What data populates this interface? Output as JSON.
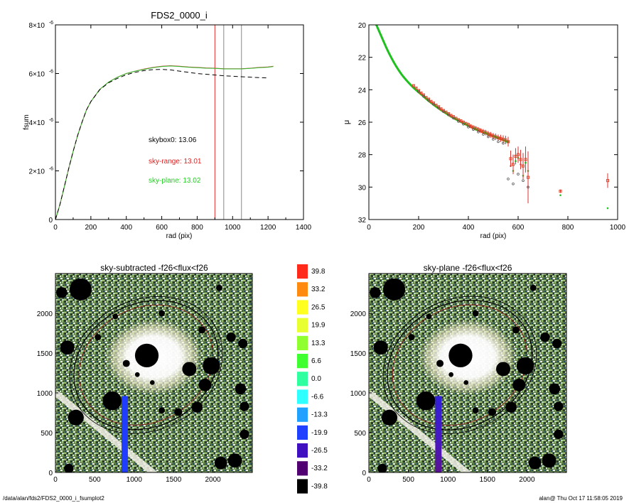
{
  "page": {
    "footer_left": "/data/alan/fds2/FDS2_0000_i_fsumplot2",
    "footer_right": "alan@  Thu Oct 17 11:58:05 2019"
  },
  "chart_data": [
    {
      "type": "line",
      "title": "FDS2_0000_i",
      "xlabel": "rad (pix)",
      "ylabel": "fsum",
      "xlim": [
        0,
        1400
      ],
      "ylim": [
        0,
        8e-06
      ],
      "x_ticks": [
        "0",
        "200",
        "400",
        "600",
        "800",
        "1000",
        "1200",
        "1400"
      ],
      "y_ticks": [
        {
          "value": 0,
          "label": "0",
          "sup": ""
        },
        {
          "value": 2e-06,
          "label": "2×10",
          "sup": "-6"
        },
        {
          "value": 4e-06,
          "label": "4×10",
          "sup": "-6"
        },
        {
          "value": 6e-06,
          "label": "6×10",
          "sup": "-6"
        },
        {
          "value": 8e-06,
          "label": "8×10",
          "sup": "-6"
        }
      ],
      "series": [
        {
          "color": "#d22020",
          "x": [
            0,
            25,
            50,
            75,
            100,
            125,
            150,
            175,
            200,
            250,
            300,
            350,
            400,
            450,
            500,
            550,
            600,
            650,
            700,
            750,
            800,
            850,
            900,
            950,
            1000,
            1050,
            1100,
            1150,
            1200,
            1230
          ],
          "y": [
            0,
            6e-07,
            1.35e-06,
            2.1e-06,
            2.8e-06,
            3.45e-06,
            4e-06,
            4.5e-06,
            4.85e-06,
            5.35e-06,
            5.65e-06,
            5.85e-06,
            6e-06,
            6.1e-06,
            6.18e-06,
            6.25e-06,
            6.3e-06,
            6.32e-06,
            6.3e-06,
            6.27e-06,
            6.25e-06,
            6.23e-06,
            6.22e-06,
            6.2e-06,
            6.2e-06,
            6.2e-06,
            6.22e-06,
            6.25e-06,
            6.27e-06,
            6.3e-06
          ]
        },
        {
          "color": "#30c030",
          "x": [
            0,
            25,
            50,
            75,
            100,
            125,
            150,
            175,
            200,
            250,
            300,
            350,
            400,
            450,
            500,
            550,
            600,
            650,
            700,
            750,
            800,
            850,
            900,
            950,
            1000,
            1050,
            1100,
            1150,
            1200,
            1230
          ],
          "y": [
            0,
            6e-07,
            1.35e-06,
            2.1e-06,
            2.8e-06,
            3.45e-06,
            4e-06,
            4.5e-06,
            4.85e-06,
            5.35e-06,
            5.65e-06,
            5.85e-06,
            6e-06,
            6.1e-06,
            6.17e-06,
            6.24e-06,
            6.29e-06,
            6.31e-06,
            6.29e-06,
            6.26e-06,
            6.24e-06,
            6.22e-06,
            6.21e-06,
            6.19e-06,
            6.19e-06,
            6.19e-06,
            6.21e-06,
            6.24e-06,
            6.26e-06,
            6.29e-06
          ]
        },
        {
          "color": "#000000",
          "dash": "6,4",
          "x": [
            0,
            25,
            50,
            75,
            100,
            125,
            150,
            175,
            200,
            250,
            300,
            350,
            400,
            450,
            500,
            550,
            600,
            650,
            700,
            750,
            800,
            850,
            900,
            950,
            1000,
            1050,
            1100,
            1150,
            1200
          ],
          "y": [
            0,
            6e-07,
            1.35e-06,
            2.1e-06,
            2.8e-06,
            3.45e-06,
            4e-06,
            4.5e-06,
            4.85e-06,
            5.33e-06,
            5.62e-06,
            5.8e-06,
            5.95e-06,
            6.05e-06,
            6.12e-06,
            6.16e-06,
            6.17e-06,
            6.15e-06,
            6.1e-06,
            6.05e-06,
            6e-06,
            5.97e-06,
            5.94e-06,
            5.91e-06,
            5.89e-06,
            5.87e-06,
            5.85e-06,
            5.83e-06,
            5.82e-06
          ]
        }
      ],
      "vlines": [
        {
          "x": 900,
          "color": "#e03030"
        },
        {
          "x": 950,
          "color": "#888888"
        },
        {
          "x": 1050,
          "color": "#888888"
        }
      ],
      "annotations": [
        {
          "text": "skybox0: 13.06",
          "color": "#000000"
        },
        {
          "text": "sky-range: 13.01",
          "color": "#e02020"
        },
        {
          "text": "sky-plane: 13.02",
          "color": "#20d020"
        }
      ]
    },
    {
      "type": "scatter",
      "title": "",
      "xlabel": "rad (pix)",
      "ylabel": "μ",
      "xlim": [
        0,
        1000
      ],
      "ylim": [
        20,
        32
      ],
      "y_inverted": true,
      "x_ticks": [
        "0",
        "200",
        "400",
        "600",
        "800",
        "1000"
      ],
      "y_ticks": [
        "20",
        "22",
        "24",
        "26",
        "28",
        "30",
        "32"
      ],
      "series": [
        {
          "name": "",
          "color": "#20c020",
          "marker": "dot",
          "x": [
            30,
            40,
            50,
            60,
            70,
            80,
            90,
            100,
            110,
            120,
            130,
            140,
            150,
            160,
            170,
            180,
            190,
            200,
            210,
            220,
            230,
            240,
            250,
            260,
            270,
            280,
            290,
            300,
            310,
            320,
            330,
            340,
            350,
            360,
            370,
            380,
            390,
            400,
            410,
            420,
            430,
            440,
            450,
            460,
            470,
            480,
            490,
            500,
            510,
            520,
            530,
            540,
            550,
            560,
            570,
            580,
            590,
            600,
            610,
            620,
            630,
            640,
            770,
            960
          ],
          "y": [
            20.0,
            20.35,
            20.7,
            21.05,
            21.4,
            21.72,
            22.02,
            22.3,
            22.56,
            22.8,
            23.02,
            23.22,
            23.4,
            23.57,
            23.73,
            23.88,
            24.02,
            24.15,
            24.28,
            24.42,
            24.55,
            24.68,
            24.8,
            24.92,
            25.03,
            25.14,
            25.25,
            25.35,
            25.45,
            25.55,
            25.65,
            25.74,
            25.82,
            25.9,
            25.98,
            26.06,
            26.14,
            26.22,
            26.3,
            26.37,
            26.44,
            26.5,
            26.56,
            26.62,
            26.68,
            26.74,
            26.8,
            26.86,
            26.92,
            26.98,
            27.04,
            27.1,
            27.16,
            27.22,
            28.7,
            29.0,
            28.4,
            28.2,
            28.6,
            29.3,
            28.5,
            29.0,
            30.5,
            31.3
          ]
        },
        {
          "name": "",
          "color": "#e04020",
          "marker": "square",
          "x": [
            180,
            190,
            200,
            210,
            220,
            230,
            240,
            250,
            260,
            270,
            280,
            290,
            300,
            310,
            320,
            330,
            340,
            350,
            360,
            370,
            380,
            390,
            400,
            410,
            420,
            430,
            440,
            450,
            460,
            470,
            480,
            490,
            500,
            510,
            520,
            530,
            540,
            550,
            560,
            570,
            580,
            590,
            600,
            610,
            620,
            630,
            640,
            770,
            960
          ],
          "y": [
            23.75,
            23.9,
            24.05,
            24.2,
            24.32,
            24.48,
            24.58,
            24.72,
            24.82,
            24.95,
            25.05,
            25.18,
            25.28,
            25.38,
            25.48,
            25.58,
            25.66,
            25.76,
            25.85,
            25.92,
            26.0,
            26.08,
            26.15,
            26.25,
            26.32,
            26.38,
            26.45,
            26.52,
            26.58,
            26.64,
            26.72,
            26.78,
            26.85,
            26.9,
            26.96,
            27.0,
            27.05,
            27.1,
            27.2,
            28.25,
            28.6,
            28.1,
            28.0,
            28.3,
            28.7,
            28.3,
            29.4,
            30.25,
            29.6
          ],
          "err": [
            0.05,
            0.05,
            0.05,
            0.05,
            0.05,
            0.05,
            0.06,
            0.06,
            0.06,
            0.06,
            0.07,
            0.07,
            0.07,
            0.08,
            0.08,
            0.08,
            0.08,
            0.09,
            0.09,
            0.09,
            0.1,
            0.1,
            0.12,
            0.12,
            0.13,
            0.14,
            0.15,
            0.15,
            0.16,
            0.17,
            0.18,
            0.18,
            0.19,
            0.2,
            0.2,
            0.22,
            0.24,
            0.26,
            0.3,
            0.5,
            0.6,
            0.5,
            0.5,
            0.6,
            0.8,
            0.8,
            1.6,
            0.1,
            0.45
          ]
        },
        {
          "name": "",
          "color": "#555555",
          "marker": "circle",
          "x": [
            200,
            220,
            240,
            260,
            280,
            300,
            320,
            340,
            360,
            380,
            400,
            420,
            440,
            460,
            480,
            500,
            520,
            540,
            560,
            580,
            600,
            620,
            640
          ],
          "y": [
            24.1,
            24.4,
            24.65,
            24.9,
            25.12,
            25.35,
            25.55,
            25.75,
            25.95,
            26.12,
            26.3,
            26.45,
            26.6,
            26.75,
            26.9,
            27.05,
            27.2,
            27.3,
            29.5,
            29.8,
            29.2,
            29.6,
            30.0
          ]
        }
      ]
    },
    {
      "type": "heatmap",
      "title": "sky-subtracted -f26<flux<f26",
      "xlim": [
        0,
        2500
      ],
      "ylim": [
        0,
        2500
      ],
      "x_ticks": [
        "0",
        "500",
        "1000",
        "1500",
        "2000"
      ],
      "y_ticks": [
        "0",
        "500",
        "1000",
        "1500",
        "2000"
      ]
    },
    {
      "type": "heatmap",
      "title": "sky-plane -f26<flux<f26",
      "xlim": [
        0,
        2500
      ],
      "ylim": [
        0,
        2500
      ],
      "x_ticks": [
        "0",
        "500",
        "1000",
        "1500",
        "2000"
      ],
      "y_ticks": [
        "0",
        "500",
        "1000",
        "1500",
        "2000"
      ]
    }
  ],
  "colorbar": {
    "labels": [
      "39.8",
      "33.2",
      "26.5",
      "19.9",
      "13.3",
      "6.6",
      "0.0",
      "-6.6",
      "-13.3",
      "-19.9",
      "-26.5",
      "-33.2",
      "-39.8"
    ],
    "colors": [
      "#ff2a1a",
      "#ff8a10",
      "#ffff20",
      "#e8ff30",
      "#90ff30",
      "#40ff30",
      "#30ffa0",
      "#30ffff",
      "#20a0ff",
      "#2040ff",
      "#4010c0",
      "#500070",
      "#000000"
    ]
  },
  "image": {
    "black_holes": [
      {
        "x": 320,
        "y": 2300,
        "r": 140
      },
      {
        "x": 80,
        "y": 2260,
        "r": 70
      },
      {
        "x": 1160,
        "y": 1470,
        "r": 150
      },
      {
        "x": 1700,
        "y": 1300,
        "r": 90
      },
      {
        "x": 1980,
        "y": 1340,
        "r": 110
      },
      {
        "x": 150,
        "y": 1570,
        "r": 90
      },
      {
        "x": 720,
        "y": 900,
        "r": 120
      },
      {
        "x": 260,
        "y": 690,
        "r": 100
      },
      {
        "x": 1900,
        "y": 1100,
        "r": 80
      },
      {
        "x": 1800,
        "y": 820,
        "r": 70
      },
      {
        "x": 2230,
        "y": 1700,
        "r": 60
      },
      {
        "x": 2380,
        "y": 1620,
        "r": 60
      },
      {
        "x": 2400,
        "y": 830,
        "r": 60
      },
      {
        "x": 2400,
        "y": 480,
        "r": 60
      },
      {
        "x": 2100,
        "y": 120,
        "r": 80
      },
      {
        "x": 2280,
        "y": 150,
        "r": 90
      },
      {
        "x": 2350,
        "y": 1050,
        "r": 70
      },
      {
        "x": 1860,
        "y": 1790,
        "r": 45
      },
      {
        "x": 1560,
        "y": 760,
        "r": 50
      },
      {
        "x": 1350,
        "y": 780,
        "r": 40
      },
      {
        "x": 170,
        "y": 50,
        "r": 60
      },
      {
        "x": 2080,
        "y": 2320,
        "r": 40
      },
      {
        "x": 1350,
        "y": 2000,
        "r": 40
      },
      {
        "x": 540,
        "y": 1700,
        "r": 40
      },
      {
        "x": 760,
        "y": 1960,
        "r": 35
      },
      {
        "x": 900,
        "y": 1370,
        "r": 45
      },
      {
        "x": 1040,
        "y": 1230,
        "r": 30
      },
      {
        "x": 1230,
        "y": 1130,
        "r": 30
      }
    ],
    "blue_bar": {
      "x0": 840,
      "x1": 920,
      "y0": 0,
      "y1": 960
    },
    "ellipse": {
      "cx": 1150,
      "cy": 1350,
      "rx": 950,
      "ry": 780,
      "angle": -28
    }
  }
}
